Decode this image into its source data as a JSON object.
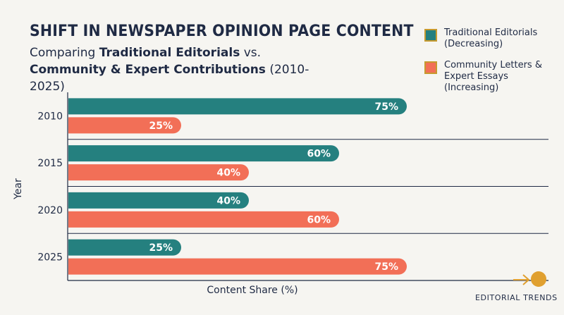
{
  "colors": {
    "traditional": "#25807f",
    "community": "#f26f57",
    "accent": "#e0a030",
    "axis": "#1f2a44"
  },
  "chart_data": {
    "type": "bar",
    "orientation": "horizontal",
    "title": "SHIFT IN NEWSPAPER OPINION PAGE CONTENT",
    "subtitle_parts": [
      "Comparing ",
      "Traditional Editorials",
      " vs. ",
      "Community & Expert Contributions",
      " (2010-2025)"
    ],
    "xlabel": "Content Share (%)",
    "ylabel": "Year",
    "xlim": [
      0,
      100
    ],
    "categories": [
      "2010",
      "2015",
      "2020",
      "2025"
    ],
    "series": [
      {
        "name": "Traditional Editorials (Decreasing)",
        "values": [
          75,
          60,
          40,
          25
        ],
        "labels": [
          "75%",
          "60%",
          "40%",
          "25%"
        ]
      },
      {
        "name": "Community Letters & Expert Essays (Increasing)",
        "values": [
          25,
          40,
          60,
          75
        ],
        "labels": [
          "25%",
          "40%",
          "60%",
          "75%"
        ]
      }
    ],
    "legend_position": "top-right",
    "grid": "horizontal separators between year groups"
  },
  "branding": {
    "label": "EDITORIAL TRENDS",
    "icon": "arrow-right-circle-icon"
  }
}
